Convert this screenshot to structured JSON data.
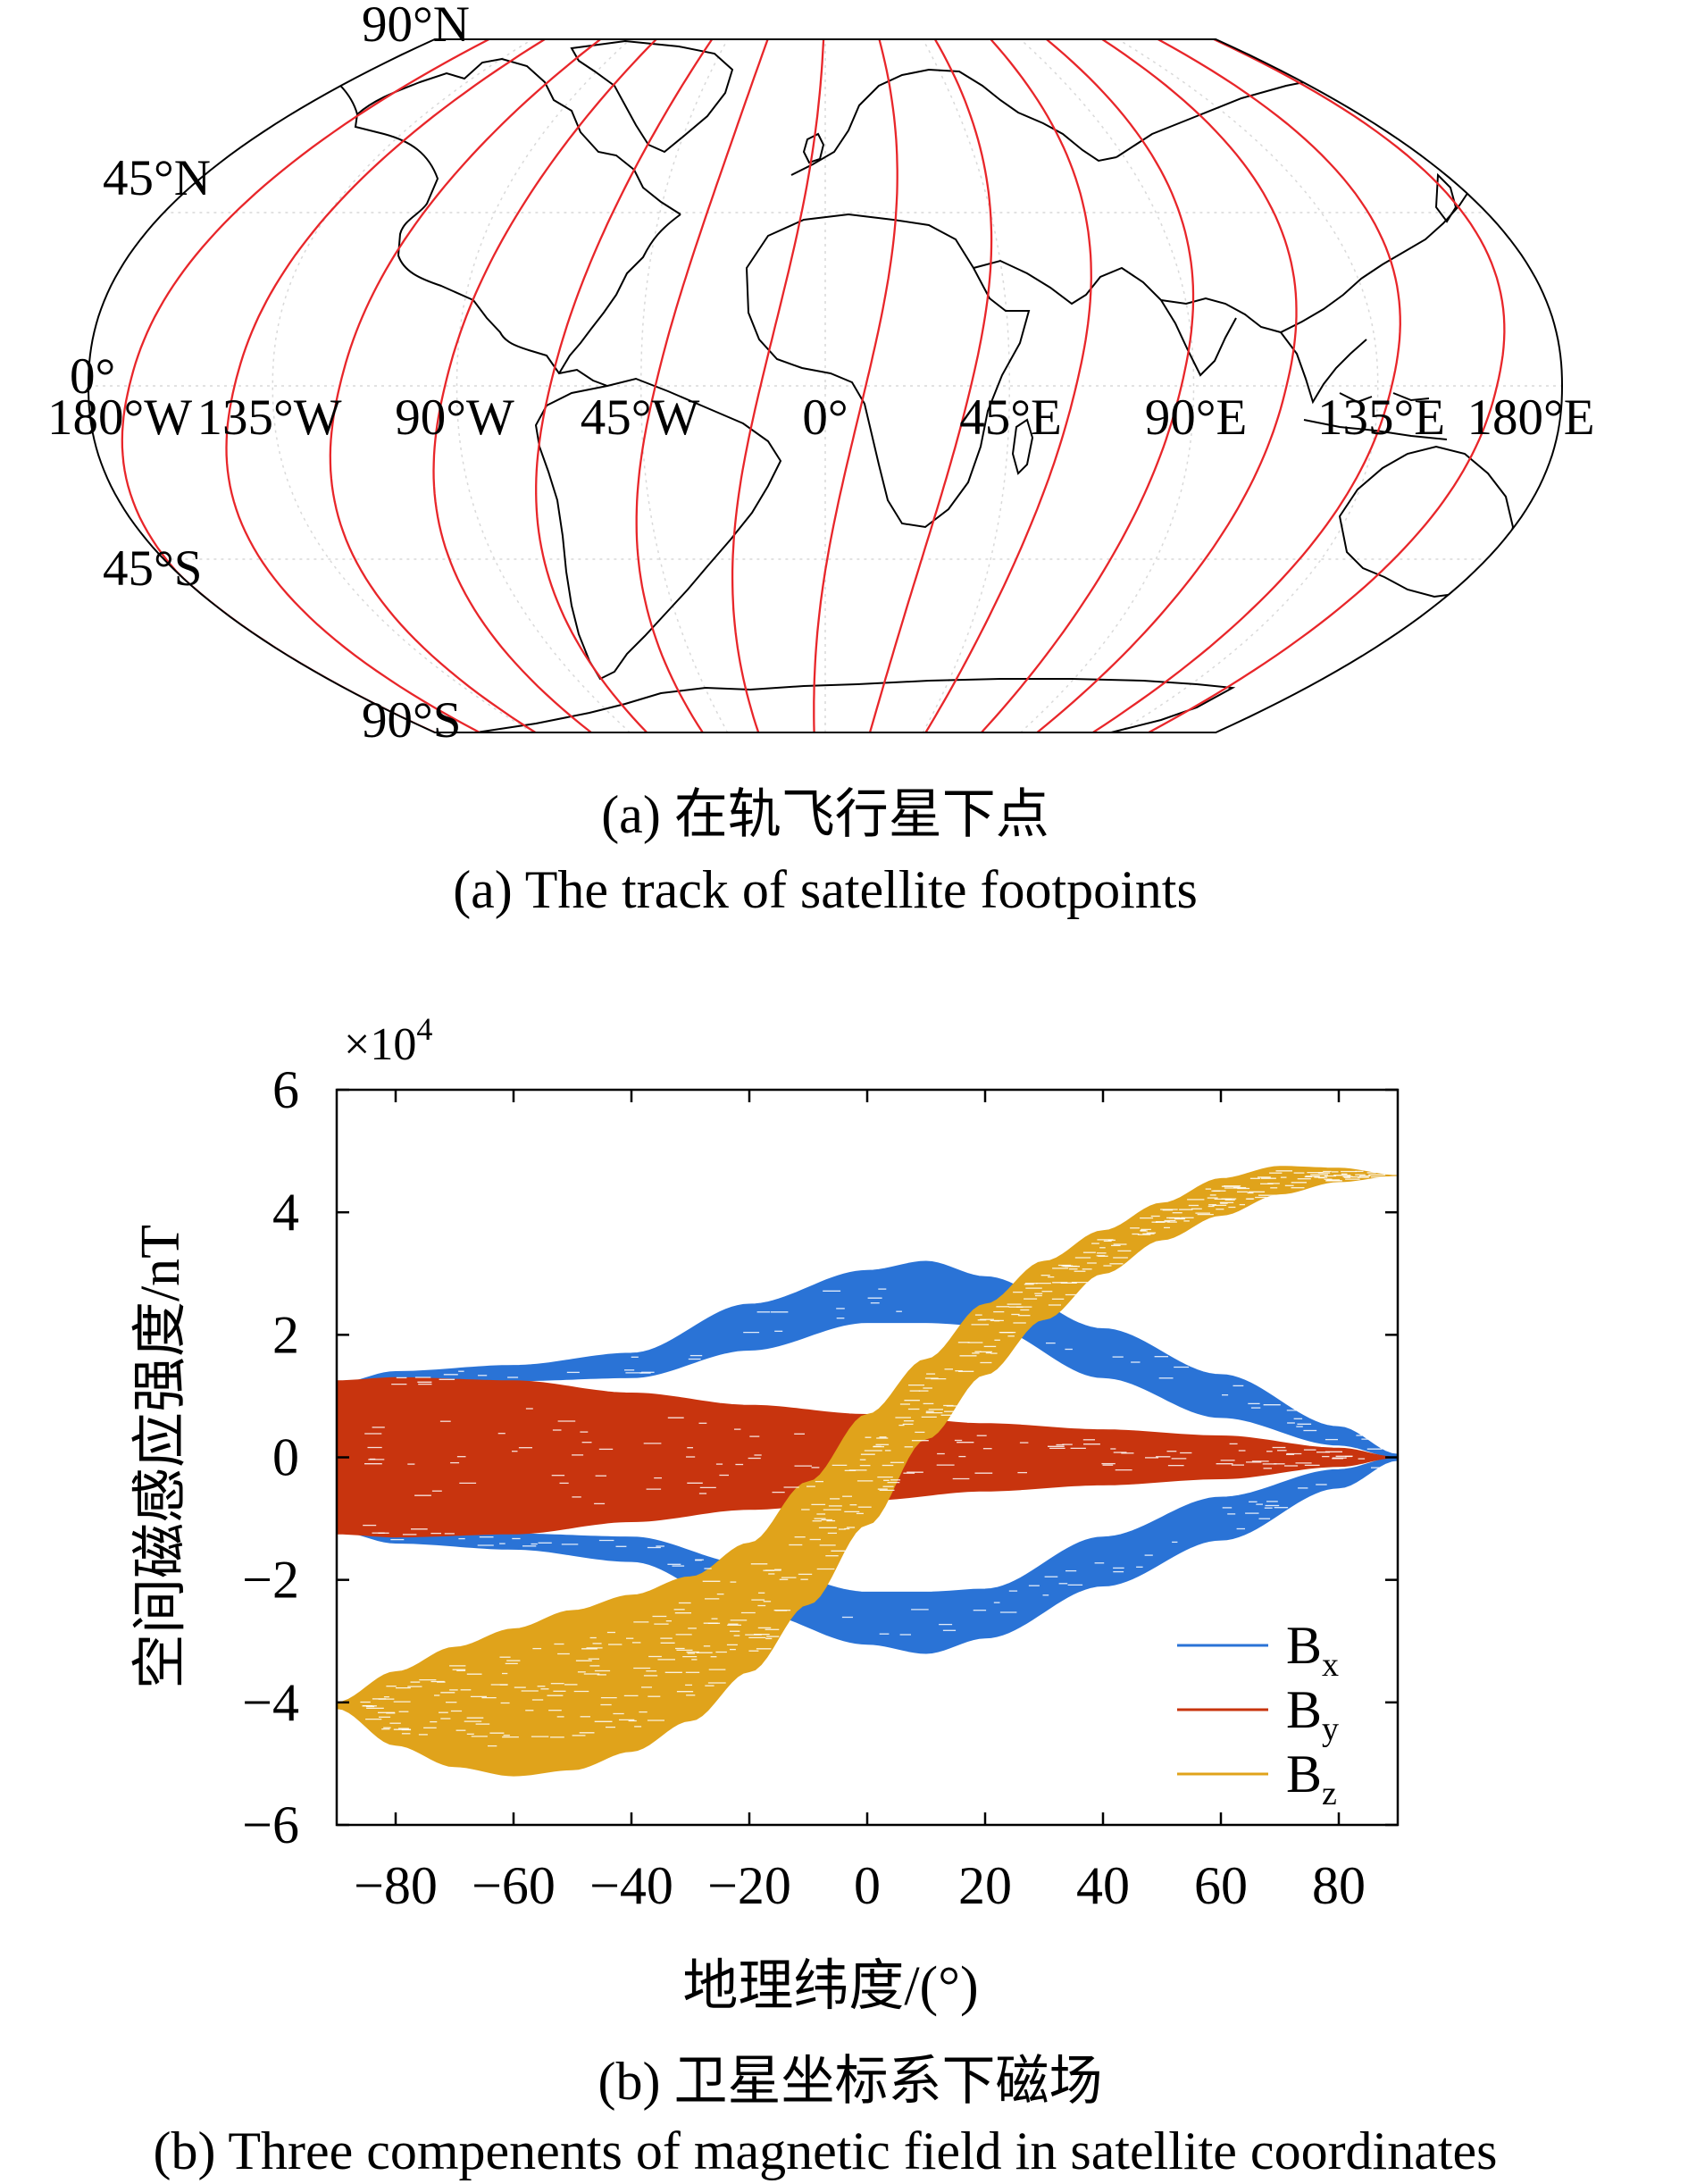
{
  "map": {
    "lat_labels": {
      "n90": "90°N",
      "n45": "45°N",
      "eq": "0°",
      "s45": "45°S",
      "s90": "90°S"
    },
    "lon_labels": [
      "180°W",
      "135°W",
      "90°W",
      "45°W",
      "0°",
      "45°E",
      "90°E",
      "135°E",
      "180°E"
    ],
    "track_color": "#e8262a",
    "caption_cn": "(a) 在轨飞行星下点",
    "caption_en": "(a) The track of satellite footpoints"
  },
  "chart_data": {
    "type": "area",
    "title": "",
    "xlabel": "地理纬度/(°)",
    "ylabel": "空间磁感应强度/nT",
    "y_multiplier": "×10",
    "y_multiplier_exp": "4",
    "xlim": [
      -90,
      90
    ],
    "ylim": [
      -6,
      6
    ],
    "xticks": [
      -80,
      -60,
      -40,
      -20,
      0,
      20,
      40,
      60,
      80
    ],
    "xtick_labels": [
      "−80",
      "−60",
      "−40",
      "−20",
      "0",
      "20",
      "40",
      "60",
      "80"
    ],
    "yticks": [
      6,
      4,
      2,
      0,
      -2,
      -4,
      -6
    ],
    "ytick_labels": [
      "6",
      "4",
      "2",
      "0",
      "−2",
      "−4",
      "−6"
    ],
    "legend_position": "bottom-right",
    "series": [
      {
        "name": "Bx",
        "label_main": "B",
        "label_sub": "x",
        "color": "#2a73d6",
        "x": [
          -90,
          -80,
          -60,
          -40,
          -20,
          0,
          10,
          20,
          40,
          60,
          80,
          90
        ],
        "upper": [
          1.2,
          1.4,
          1.5,
          1.7,
          2.5,
          3.05,
          3.2,
          2.95,
          2.1,
          1.35,
          0.5,
          0.05
        ],
        "lower": [
          0.9,
          1.1,
          1.25,
          1.3,
          1.75,
          2.2,
          2.2,
          2.15,
          1.3,
          0.65,
          0.2,
          0.0
        ],
        "mirrored": true
      },
      {
        "name": "By",
        "label_main": "B",
        "label_sub": "y",
        "color": "#c8340e",
        "x": [
          -90,
          -80,
          -60,
          -40,
          -20,
          0,
          20,
          40,
          60,
          80,
          90
        ],
        "upper": [
          1.25,
          1.3,
          1.25,
          1.05,
          0.85,
          0.7,
          0.55,
          0.45,
          0.35,
          0.15,
          0.0
        ],
        "lower": [
          -1.25,
          -1.3,
          -1.25,
          -1.05,
          -0.85,
          -0.7,
          -0.55,
          -0.45,
          -0.35,
          -0.15,
          0.0
        ]
      },
      {
        "name": "Bz",
        "label_main": "B",
        "label_sub": "z",
        "color": "#e0a31b",
        "x": [
          -90,
          -80,
          -70,
          -60,
          -50,
          -40,
          -30,
          -20,
          -10,
          0,
          10,
          20,
          30,
          40,
          50,
          60,
          70,
          80,
          90
        ],
        "upper": [
          -4.0,
          -3.5,
          -3.1,
          -2.8,
          -2.5,
          -2.25,
          -1.95,
          -1.4,
          -0.4,
          0.7,
          1.6,
          2.5,
          3.2,
          3.7,
          4.15,
          4.55,
          4.75,
          4.72,
          4.6
        ],
        "lower": [
          -4.1,
          -4.7,
          -5.05,
          -5.2,
          -5.1,
          -4.8,
          -4.3,
          -3.5,
          -2.4,
          -1.1,
          0.3,
          1.35,
          2.25,
          3.0,
          3.55,
          3.95,
          4.3,
          4.5,
          4.6
        ]
      }
    ],
    "caption_cn": "(b) 卫星坐标系下磁场",
    "caption_en": "(b) Three compenents of magnetic field in satellite coordinates"
  }
}
